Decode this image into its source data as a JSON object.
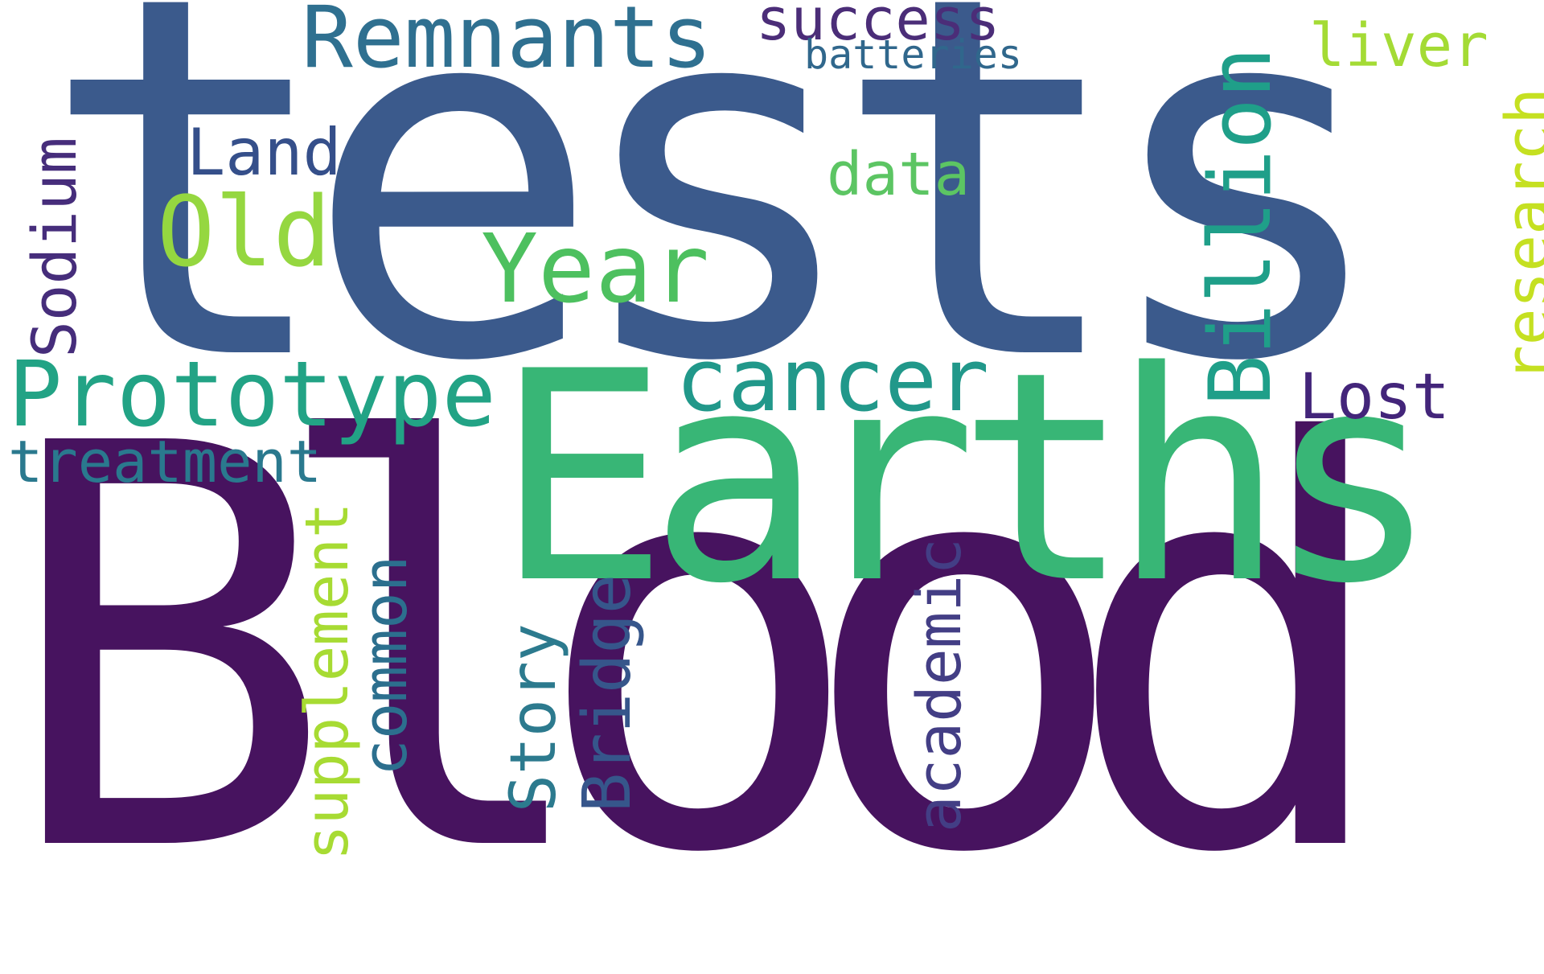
{
  "words": {
    "tests": {
      "text": "tests",
      "color": "#3b5a8c"
    },
    "blood": {
      "text": "Blood",
      "color": "#47135f"
    },
    "earths": {
      "text": "Earths",
      "color": "#38b676"
    },
    "remnants": {
      "text": "Remnants",
      "color": "#2f7090"
    },
    "success": {
      "text": "success",
      "color": "#4b2d78"
    },
    "batteries": {
      "text": "batteries",
      "color": "#30678c"
    },
    "land": {
      "text": "Land",
      "color": "#354f8a"
    },
    "old": {
      "text": "Old",
      "color": "#95d740"
    },
    "year": {
      "text": "Year",
      "color": "#4dc05f"
    },
    "data": {
      "text": "data",
      "color": "#5cc563"
    },
    "liver": {
      "text": "liver",
      "color": "#a4db35"
    },
    "cancer": {
      "text": "cancer",
      "color": "#21988a"
    },
    "prototype": {
      "text": "Prototype",
      "color": "#22a385"
    },
    "treatment": {
      "text": "treatment",
      "color": "#2a798e"
    },
    "lost": {
      "text": "Lost",
      "color": "#43257a"
    },
    "sodium": {
      "text": "Sodium",
      "color": "#462d7b"
    },
    "billion": {
      "text": "Billion",
      "color": "#1f9f89"
    },
    "research": {
      "text": "research",
      "color": "#c5e021"
    },
    "supplement": {
      "text": "supplement",
      "color": "#a7db33"
    },
    "common": {
      "text": "common",
      "color": "#2c6f8e"
    },
    "story": {
      "text": "Story",
      "color": "#2c7a8e"
    },
    "bridge": {
      "text": "Bridge",
      "color": "#36568b"
    },
    "academic": {
      "text": "academic",
      "color": "#433e85"
    }
  }
}
